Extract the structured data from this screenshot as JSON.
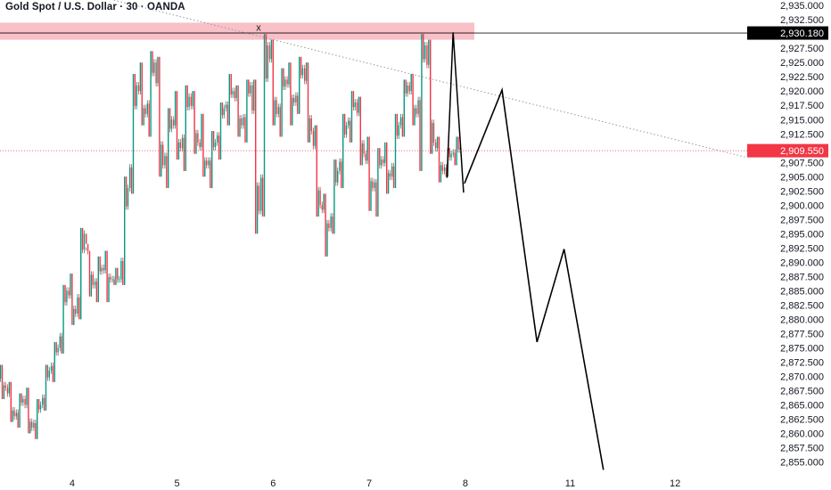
{
  "header": {
    "title": "Gold Spot / U.S. Dollar · 30 · OANDA"
  },
  "colors": {
    "up": "#089981",
    "down": "#f23645",
    "zone": "#f7b6bd",
    "zone_line": "#f23645",
    "projection": "#000000",
    "trendline": "#9598a1",
    "last_price_tag": "#f23645",
    "resistance_tag": "#000000"
  },
  "chart_data": {
    "type": "candlestick",
    "symbol": "Gold Spot / U.S. Dollar",
    "interval": "30",
    "source": "OANDA",
    "ylim": [
      2853.5,
      2935.5
    ],
    "y_ticks": [
      2855.0,
      2857.5,
      2860.0,
      2862.5,
      2865.0,
      2867.5,
      2870.0,
      2872.5,
      2875.0,
      2877.5,
      2880.0,
      2882.5,
      2885.0,
      2887.5,
      2890.0,
      2892.5,
      2895.0,
      2897.5,
      2900.0,
      2902.5,
      2905.0,
      2907.5,
      2910.0,
      2912.5,
      2915.0,
      2917.5,
      2920.0,
      2922.5,
      2925.0,
      2927.5,
      2930.0,
      2932.5,
      2935.0
    ],
    "x_ticks": [
      {
        "label": "4",
        "bar": 8
      },
      {
        "label": "5",
        "bar": 20
      },
      {
        "label": "6",
        "bar": 31
      },
      {
        "label": "7",
        "bar": 42
      },
      {
        "label": "8",
        "bar": 53
      },
      {
        "label": "11",
        "bar": 65
      },
      {
        "label": "12",
        "bar": 77
      }
    ],
    "candles_ohlc": [
      [
        2870,
        2872,
        2866,
        2868
      ],
      [
        2868,
        2869,
        2862,
        2863
      ],
      [
        2863,
        2867,
        2861,
        2866
      ],
      [
        2866,
        2868,
        2860,
        2861
      ],
      [
        2861,
        2866,
        2859,
        2865
      ],
      [
        2865,
        2872,
        2864,
        2871
      ],
      [
        2871,
        2876,
        2869,
        2875
      ],
      [
        2875,
        2886,
        2874,
        2885
      ],
      [
        2885,
        2888,
        2879,
        2881
      ],
      [
        2881,
        2896,
        2880,
        2895
      ],
      [
        2895,
        2892,
        2884,
        2886
      ],
      [
        2886,
        2891,
        2883,
        2889
      ],
      [
        2889,
        2892,
        2883,
        2887
      ],
      [
        2887,
        2889,
        2886,
        2887
      ],
      [
        2887,
        2905,
        2886,
        2903
      ],
      [
        2903,
        2923,
        2902,
        2921
      ],
      [
        2921,
        2925,
        2914,
        2916
      ],
      [
        2916,
        2927,
        2912,
        2925
      ],
      [
        2925,
        2926,
        2905,
        2907
      ],
      [
        2907,
        2917,
        2903,
        2915
      ],
      [
        2915,
        2920,
        2908,
        2910
      ],
      [
        2910,
        2921,
        2906,
        2919
      ],
      [
        2919,
        2920,
        2909,
        2911
      ],
      [
        2911,
        2916,
        2905,
        2907
      ],
      [
        2907,
        2913,
        2903,
        2911
      ],
      [
        2911,
        2918,
        2908,
        2917
      ],
      [
        2917,
        2923,
        2914,
        2920
      ],
      [
        2920,
        2921,
        2912,
        2914
      ],
      [
        2914,
        2922,
        2911,
        2921
      ],
      [
        2921,
        2922,
        2895,
        2899
      ],
      [
        2899,
        2930,
        2898,
        2928
      ],
      [
        2928,
        2929,
        2914,
        2916
      ],
      [
        2916,
        2924,
        2912,
        2922
      ],
      [
        2922,
        2925,
        2914,
        2918
      ],
      [
        2918,
        2926,
        2916,
        2924
      ],
      [
        2924,
        2925,
        2911,
        2913
      ],
      [
        2913,
        2914,
        2898,
        2900
      ],
      [
        2900,
        2902,
        2891,
        2896
      ],
      [
        2896,
        2908,
        2895,
        2906
      ],
      [
        2906,
        2916,
        2903,
        2914
      ],
      [
        2914,
        2920,
        2911,
        2918
      ],
      [
        2918,
        2919,
        2907,
        2909
      ],
      [
        2909,
        2912,
        2899,
        2903
      ],
      [
        2903,
        2910,
        2898,
        2908
      ],
      [
        2908,
        2911,
        2902,
        2905
      ],
      [
        2905,
        2916,
        2903,
        2914
      ],
      [
        2914,
        2922,
        2912,
        2921
      ],
      [
        2921,
        2923,
        2914,
        2916
      ],
      [
        2916,
        2930,
        2906,
        2928
      ],
      [
        2928,
        2929,
        2909,
        2911
      ],
      [
        2911,
        2912,
        2904,
        2906
      ],
      [
        2906,
        2910,
        2905,
        2909
      ],
      [
        2909,
        2912,
        2907,
        2910
      ]
    ],
    "last_price": {
      "value": 2909.55,
      "label": "2,909.550"
    },
    "resistance": {
      "value": 2930.18,
      "label": "2,930.180"
    },
    "supply_zone": {
      "from": 2929.0,
      "to": 2932.0,
      "marker": "x"
    },
    "trendline": {
      "from": {
        "bar": 10,
        "price": 2937
      },
      "to": {
        "bar": 77,
        "price": 2911.5
      }
    },
    "projection_path": [
      {
        "bar": 52.9,
        "price": 2903.8
      },
      {
        "bar": 57.2,
        "price": 2920.2
      },
      {
        "bar": 61.2,
        "price": 2876.0
      },
      {
        "bar": 64.3,
        "price": 2892.3
      },
      {
        "bar": 68.8,
        "price": 2853.6
      }
    ],
    "peak_wedge": [
      {
        "bar": 52.8,
        "price": 2902.2
      },
      {
        "bar": 51.6,
        "price": 2930.3
      },
      {
        "bar": 50.9,
        "price": 2904.8
      }
    ]
  }
}
